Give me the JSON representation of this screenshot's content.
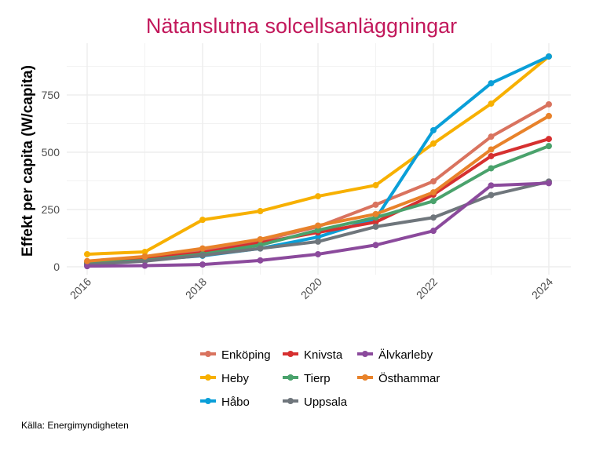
{
  "chart_data": {
    "type": "line",
    "title": "Nätanslutna solcellsanläggningar",
    "xlabel": "",
    "ylabel": "Effekt per capita (W/capita)",
    "x": [
      2016,
      2017,
      2018,
      2019,
      2020,
      2021,
      2022,
      2023,
      2024
    ],
    "x_ticks": [
      "2016",
      "2018",
      "2020",
      "2022",
      "2024"
    ],
    "y_ticks": [
      "0",
      "250",
      "500",
      "750"
    ],
    "ylim": [
      0,
      960
    ],
    "grid": true,
    "legend_position": "bottom",
    "caption": "Källa: Energimyndigheten",
    "series": [
      {
        "name": "Enköping",
        "color": "#d9735f",
        "values": [
          20,
          40,
          70,
          115,
          175,
          271,
          373,
          568,
          709
        ]
      },
      {
        "name": "Heby",
        "color": "#f7b000",
        "values": [
          55,
          65,
          205,
          243,
          308,
          356,
          538,
          712,
          918
        ]
      },
      {
        "name": "Håbo",
        "color": "#0a9fd8",
        "values": [
          8,
          30,
          48,
          80,
          130,
          210,
          596,
          801,
          918
        ]
      },
      {
        "name": "Knivsta",
        "color": "#d63030",
        "values": [
          15,
          35,
          62,
          105,
          150,
          195,
          315,
          483,
          558
        ]
      },
      {
        "name": "Tierp",
        "color": "#4aa26c",
        "values": [
          15,
          28,
          55,
          95,
          160,
          215,
          287,
          430,
          527
        ]
      },
      {
        "name": "Uppsala",
        "color": "#6f767c",
        "values": [
          10,
          25,
          50,
          80,
          110,
          175,
          215,
          313,
          372
        ]
      },
      {
        "name": "Älvkarleby",
        "color": "#8b4a9c",
        "values": [
          3,
          5,
          10,
          28,
          55,
          95,
          157,
          355,
          365
        ]
      },
      {
        "name": "Östhammar",
        "color": "#e8822a",
        "values": [
          25,
          45,
          80,
          120,
          180,
          230,
          325,
          512,
          658
        ]
      }
    ]
  }
}
